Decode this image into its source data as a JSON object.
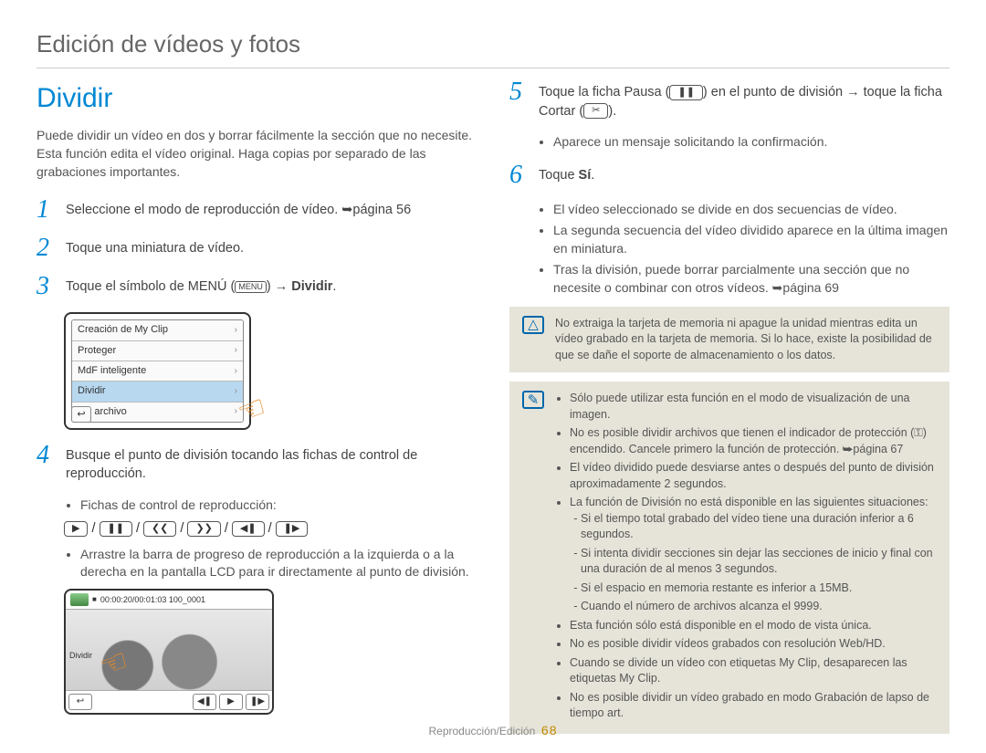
{
  "header": "Edición de vídeos y fotos",
  "title": "Dividir",
  "intro": "Puede dividir un vídeo en dos y borrar fácilmente la sección que no necesite. Esta función edita el vídeo original. Haga copias por separado de las grabaciones importantes.",
  "steps": {
    "s1": {
      "num": "1",
      "text_a": "Seleccione el modo de reproducción de vídeo. ",
      "ref": "➥página 56"
    },
    "s2": {
      "num": "2",
      "text": "Toque una miniatura de vídeo."
    },
    "s3": {
      "num": "3",
      "text_a": "Toque el símbolo de MENÚ (",
      "menu_label": "MENU",
      "text_b": ") → ",
      "bold": "Dividir",
      "text_c": "."
    },
    "s4": {
      "num": "4",
      "text": "Busque el punto de división tocando las fichas de control de reproducción."
    },
    "s4_sub_a": "Fichas de control de reproducción:",
    "s4_sub_b": "Arrastre la barra de progreso de reproducción a la izquierda o a la derecha en la pantalla LCD para ir directamente al punto de división.",
    "s5": {
      "num": "5",
      "text_a": "Toque la ficha Pausa (",
      "text_b": ") en el punto de división → toque la ficha Cortar (",
      "text_c": ")."
    },
    "s5_sub": "Aparece un mensaje solicitando la confirmación.",
    "s6": {
      "num": "6",
      "text_a": "Toque ",
      "bold": "Sí",
      "text_b": "."
    },
    "s6_subs": [
      "El vídeo seleccionado se divide en dos secuencias de vídeo.",
      "La segunda secuencia del vídeo dividido aparece en la última imagen en miniatura.",
      "Tras la división, puede borrar parcialmente una sección que no necesite o combinar con otros vídeos. ➥página 69"
    ]
  },
  "menu_items": [
    {
      "label": "Creación de My Clip",
      "selected": false
    },
    {
      "label": "Proteger",
      "selected": false
    },
    {
      "label": "MdF inteligente",
      "selected": false
    },
    {
      "label": "Dividir",
      "selected": true
    },
    {
      "label": "Inf. archivo",
      "selected": false
    }
  ],
  "playback_ctrls": [
    "▶",
    "❚❚",
    "❮❮",
    "❯❯",
    "◀❚",
    "❚▶"
  ],
  "video_mock": {
    "timecode": "00:00:20/00:01:03  100_0001",
    "label": "Dividir",
    "bottom_btns": [
      "↩",
      "◀❚",
      "▶",
      "❚▶"
    ]
  },
  "warning_box": {
    "text": "No extraiga la tarjeta de memoria ni apague la unidad mientras edita un vídeo grabado en la tarjeta de memoria. Si lo hace, existe la posibilidad de que se dañe el soporte de almacenamiento o los datos."
  },
  "note_box": {
    "items": [
      "Sólo puede utilizar esta función en el modo de visualización de una imagen.",
      "No es posible dividir archivos que tienen el indicador de protección (⚿) encendido. Cancele primero la función de protección. ➥página 67",
      "El vídeo dividido puede desviarse antes o después del punto de división aproximadamente 2 segundos.",
      "La función de División no está disponible en las siguientes situaciones:",
      "Esta función sólo está disponible en el modo de vista única.",
      "No es posible dividir vídeos grabados con resolución Web/HD.",
      "Cuando se divide un vídeo con etiquetas My Clip, desaparecen las etiquetas My Clip.",
      "No es posible dividir un vídeo grabado en modo Grabación de lapso de tiempo art."
    ],
    "sub_items": [
      "Si el tiempo total grabado del vídeo tiene una duración inferior a 6 segundos.",
      "Si intenta dividir secciones sin dejar las secciones de inicio y final con una duración de al menos 3 segundos.",
      "Si el espacio en memoria restante es inferior a 15MB.",
      "Cuando el número de archivos alcanza el 9999."
    ]
  },
  "footer": {
    "section": "Reproducción/Edición",
    "page": "68"
  },
  "colors": {
    "accent": "#0088d4",
    "box_bg": "#e6e4d9",
    "hand": "#e88a2a",
    "page_num": "#c08a00"
  }
}
